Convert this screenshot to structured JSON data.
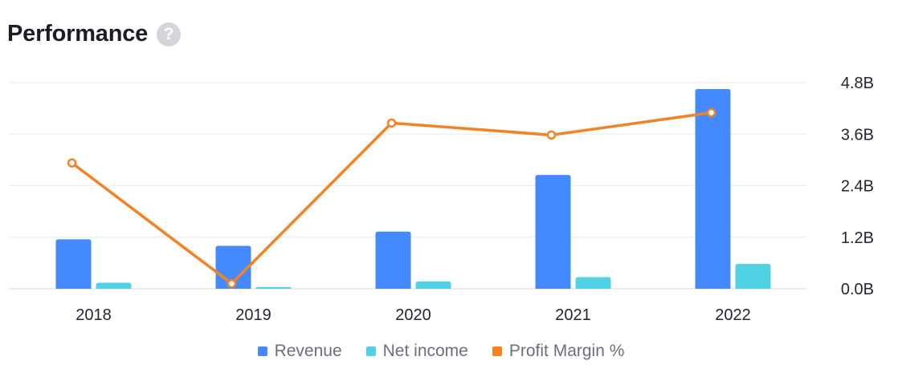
{
  "header": {
    "title": "Performance",
    "help_icon": "question-circle-icon",
    "help_glyph": "?"
  },
  "legend": [
    {
      "label": "Revenue",
      "color": "#4589ff"
    },
    {
      "label": "Net income",
      "color": "#4fd2e3"
    },
    {
      "label": "Profit Margin %",
      "color": "#f58220"
    }
  ],
  "chart_data": {
    "type": "bar",
    "categories": [
      "2018",
      "2019",
      "2020",
      "2021",
      "2022"
    ],
    "series": [
      {
        "name": "Revenue",
        "type": "bar",
        "color": "#4589ff",
        "values": [
          1.15,
          1.0,
          1.33,
          2.65,
          4.65
        ]
      },
      {
        "name": "Net income",
        "type": "bar",
        "color": "#4fd2e3",
        "values": [
          0.14,
          0.04,
          0.17,
          0.27,
          0.58
        ]
      },
      {
        "name": "Profit Margin %",
        "type": "line",
        "color": "#f58220",
        "values": [
          2.93,
          0.12,
          3.86,
          3.58,
          4.1
        ]
      }
    ],
    "y_ticks": [
      "0.0B",
      "1.2B",
      "2.4B",
      "3.6B",
      "4.8B"
    ],
    "ylim": [
      0,
      4.8
    ],
    "grid": true,
    "legend_position": "bottom"
  }
}
